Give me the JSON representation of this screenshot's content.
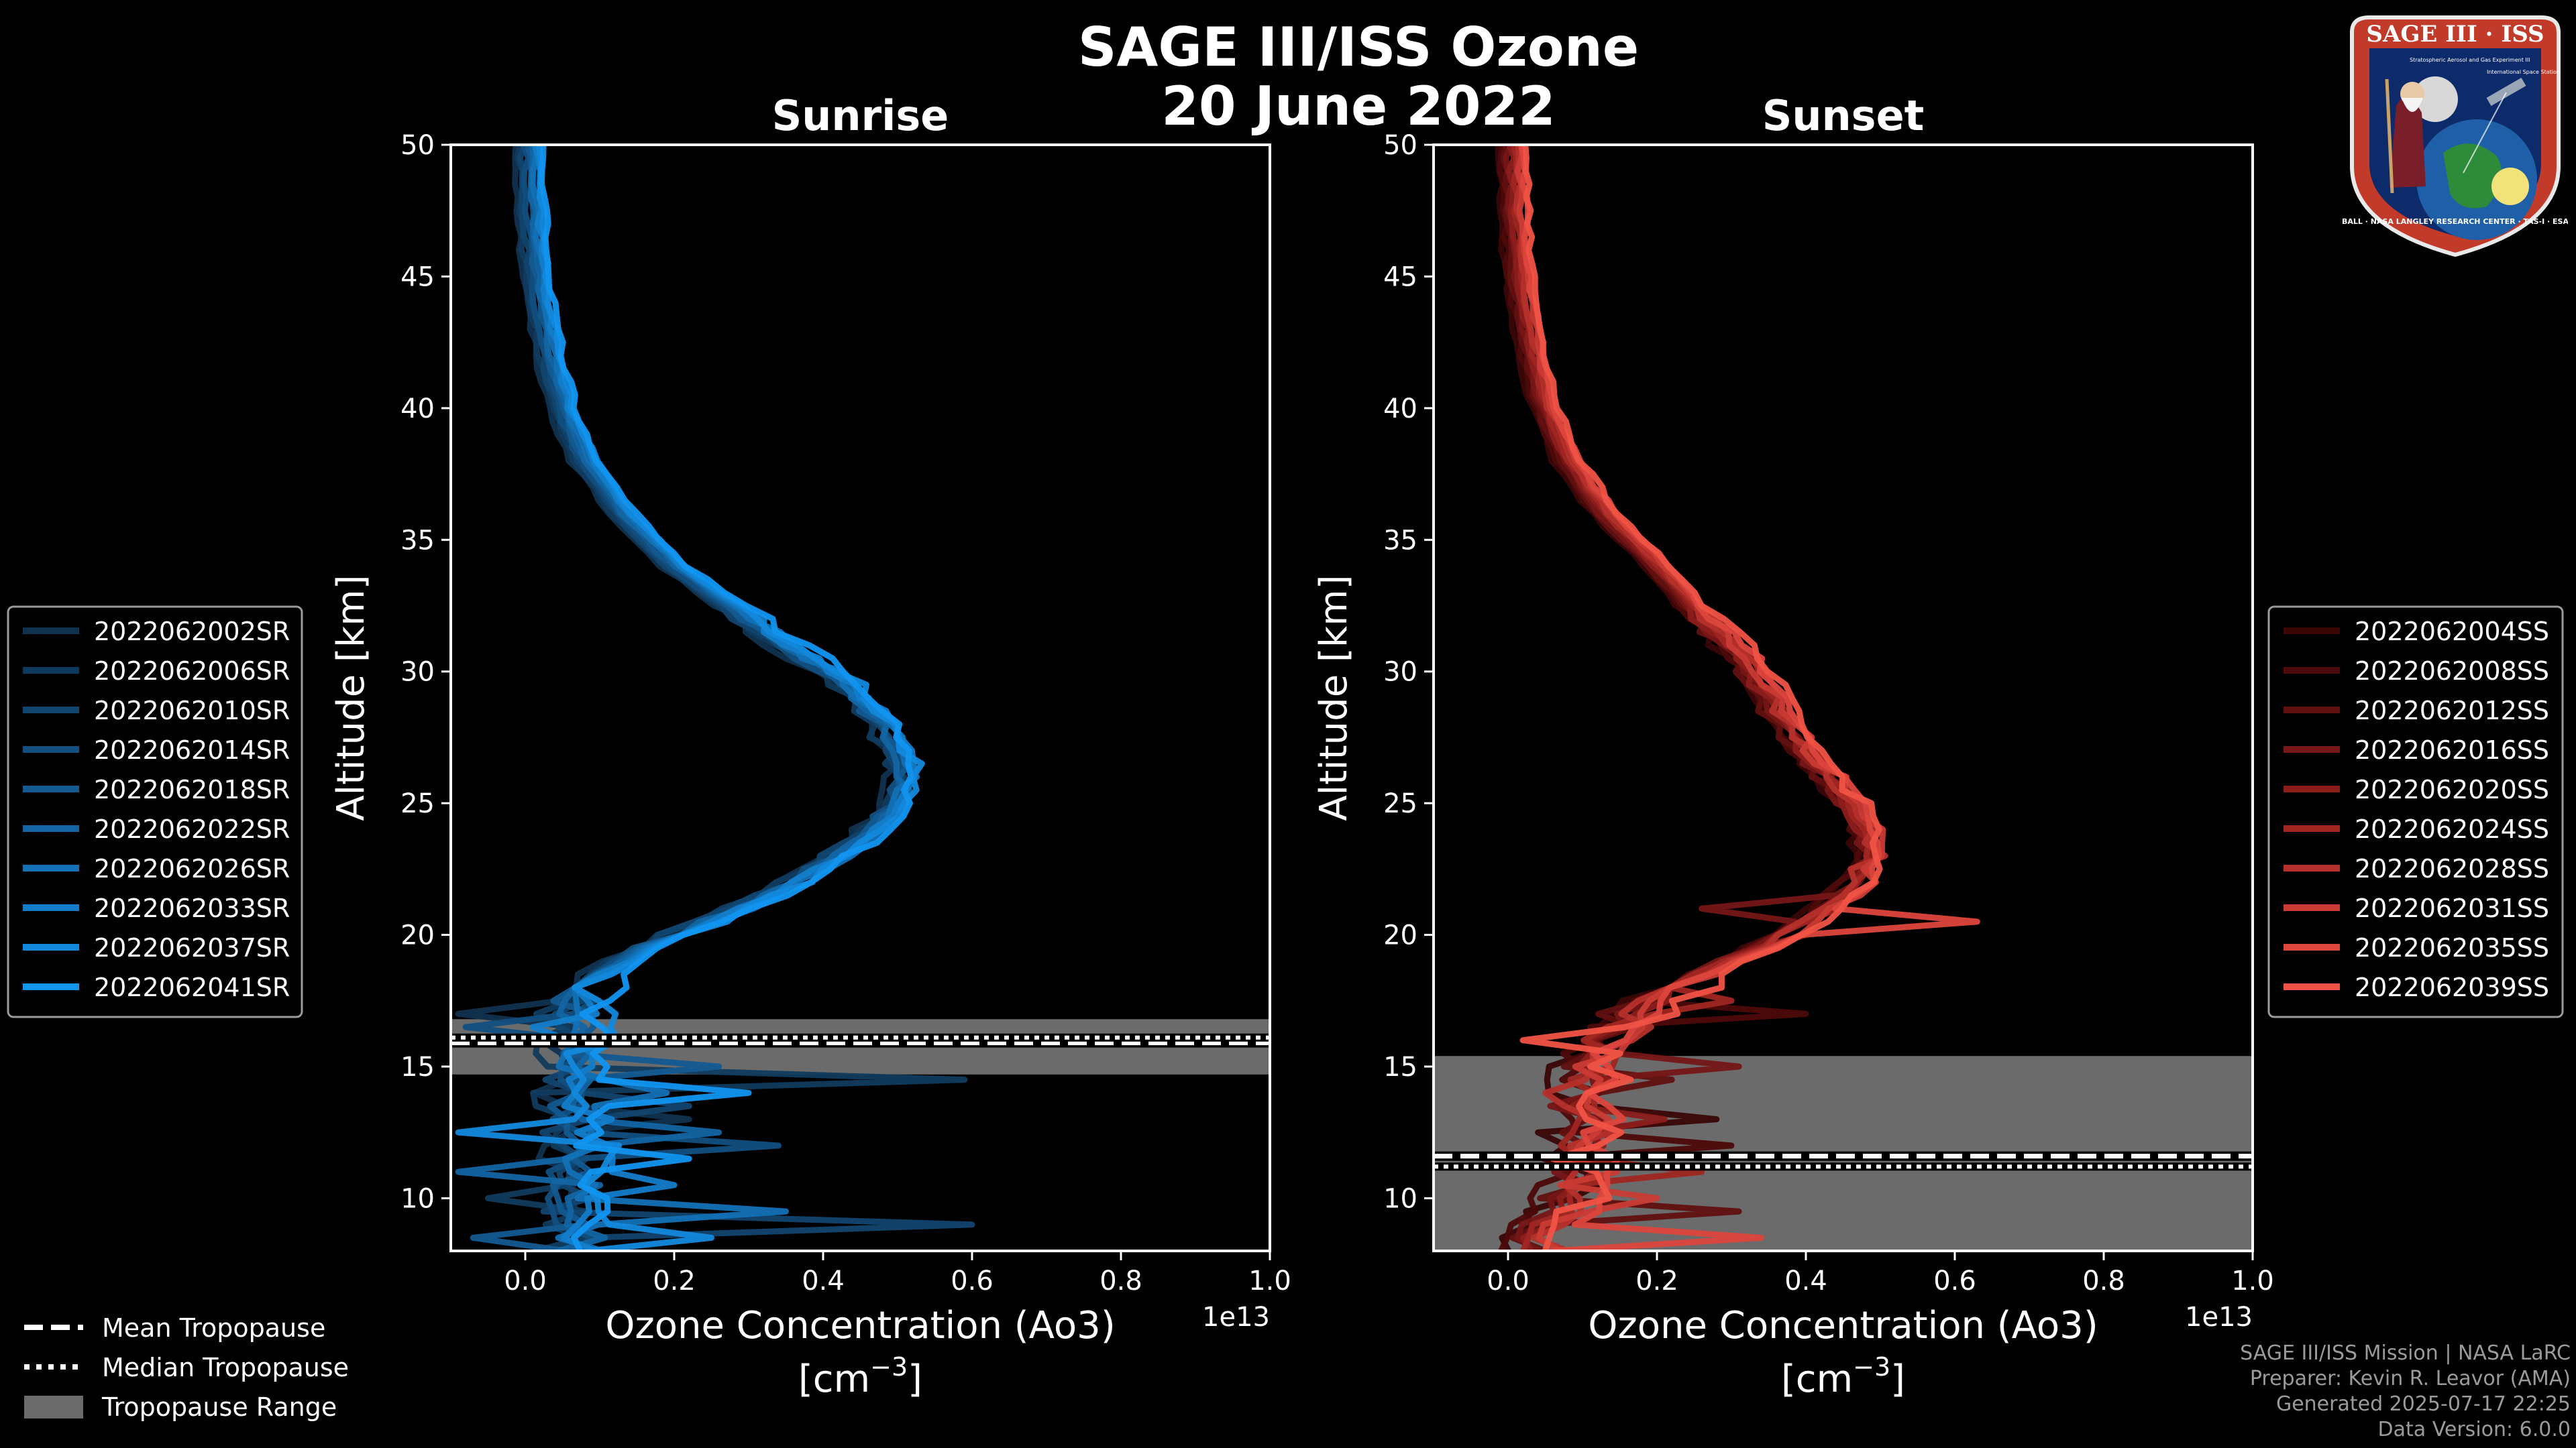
{
  "title_line1": "SAGE III/ISS Ozone",
  "title_line2": "20 June 2022",
  "logo": {
    "name": "SAGE III · ISS",
    "ring_text": "BALL · NASA LANGLEY RESEARCH CENTER · TAS-I · ESA",
    "subtitle": "Stratospheric Aerosol and Gas Experiment III",
    "subtitle2": "International Space Station"
  },
  "credits": [
    "SAGE III/ISS Mission | NASA LaRC",
    "Preparer: Kevin R. Leavor (AMA)",
    "Generated 2025-07-17 22:25",
    "Data Version: 6.0.0"
  ],
  "colors": {
    "sunrise": [
      "#10324f",
      "#113b5e",
      "#12456e",
      "#124f7f",
      "#135a91",
      "#1365a3",
      "#1371b6",
      "#137dca",
      "#1389dd",
      "#1195f0"
    ],
    "sunset": [
      "#3a0606",
      "#4d0a0a",
      "#611010",
      "#761616",
      "#8b1d1b",
      "#a02622",
      "#b5302b",
      "#c93b34",
      "#dd463d",
      "#f05345"
    ],
    "tropopause_band": "#6b6b6b"
  },
  "tropopause_legend": {
    "mean": "Mean Tropopause",
    "median": "Median Tropopause",
    "range": "Tropopause Range"
  },
  "chart_data": [
    {
      "type": "line",
      "title": "Sunrise",
      "xlabel": "Ozone Concentration (Ao3)",
      "xunit": "[cm$^{-3}$]",
      "xunit_base": "[cm",
      "xunit_exp": "−3",
      "xunit_end": "]",
      "ylabel": "Altitude [km]",
      "offset_text": "1e13",
      "xlim": [
        -0.1,
        1.0
      ],
      "ylim": [
        8,
        50
      ],
      "xticks": [
        0.0,
        0.2,
        0.4,
        0.6,
        0.8,
        1.0
      ],
      "xtick_labels": [
        "0.0",
        "0.2",
        "0.4",
        "0.6",
        "0.8",
        "1.0"
      ],
      "yticks": [
        10,
        15,
        20,
        25,
        30,
        35,
        40,
        45,
        50
      ],
      "ytick_labels": [
        "10",
        "15",
        "20",
        "25",
        "30",
        "35",
        "40",
        "45",
        "50"
      ],
      "legend_position": "left-outside",
      "tropopause": {
        "mean": 15.9,
        "median": 16.1,
        "range": [
          14.7,
          16.8
        ]
      },
      "base_profile": {
        "alt": [
          50,
          48,
          46,
          44,
          42,
          40,
          38,
          36,
          34,
          32,
          31,
          30,
          29,
          28,
          27,
          26,
          25,
          24,
          23,
          22,
          21,
          20,
          19,
          18.5,
          18,
          17.5,
          17,
          16.5,
          16,
          15.5,
          15,
          14.5,
          14,
          13.5,
          13,
          12.5,
          12,
          11.5,
          11,
          10.5,
          10,
          9.5,
          9,
          8.5,
          8
        ],
        "value": [
          0.006,
          0.008,
          0.012,
          0.02,
          0.033,
          0.05,
          0.08,
          0.13,
          0.2,
          0.3,
          0.35,
          0.41,
          0.45,
          0.48,
          0.5,
          0.51,
          0.5,
          0.47,
          0.42,
          0.36,
          0.29,
          0.2,
          0.13,
          0.1,
          0.08,
          0.075,
          0.07,
          0.07,
          0.07,
          0.068,
          0.067,
          0.066,
          0.065,
          0.067,
          0.068,
          0.07,
          0.07,
          0.072,
          0.075,
          0.072,
          0.07,
          0.07,
          0.07,
          0.07,
          0.07
        ]
      },
      "series": [
        {
          "name": "2022062002SR",
          "spikes": [
            [
              16.9,
              -0.09
            ],
            [
              12.9,
              0.22
            ]
          ]
        },
        {
          "name": "2022062006SR",
          "spikes": [
            [
              14.5,
              0.59
            ],
            [
              10.2,
              -0.05
            ]
          ]
        },
        {
          "name": "2022062010SR",
          "spikes": [
            [
              13.6,
              0.22
            ],
            [
              9.0,
              0.6
            ]
          ]
        },
        {
          "name": "2022062014SR",
          "spikes": [
            [
              16.5,
              -0.08
            ],
            [
              12.2,
              0.34
            ]
          ]
        },
        {
          "name": "2022062018SR",
          "spikes": [
            [
              15.2,
              0.26
            ],
            [
              8.7,
              -0.07
            ]
          ]
        },
        {
          "name": "2022062022SR",
          "spikes": [
            [
              12.6,
              0.26
            ],
            [
              11.1,
              -0.09
            ]
          ]
        },
        {
          "name": "2022062026SR",
          "spikes": [
            [
              13.9,
              0.19
            ],
            [
              9.6,
              0.35
            ]
          ]
        },
        {
          "name": "2022062033SR",
          "spikes": [
            [
              16.7,
              0.01
            ],
            [
              10.7,
              0.2
            ]
          ]
        },
        {
          "name": "2022062037SR",
          "spikes": [
            [
              12.3,
              -0.09
            ],
            [
              8.4,
              0.25
            ]
          ]
        },
        {
          "name": "2022062041SR",
          "spikes": [
            [
              14.1,
              0.3
            ],
            [
              11.5,
              0.22
            ]
          ]
        }
      ]
    },
    {
      "type": "line",
      "title": "Sunset",
      "xlabel": "Ozone Concentration (Ao3)",
      "xunit": "[cm$^{-3}$]",
      "xunit_base": "[cm",
      "xunit_exp": "−3",
      "xunit_end": "]",
      "ylabel": "Altitude [km]",
      "offset_text": "1e13",
      "xlim": [
        -0.1,
        1.0
      ],
      "ylim": [
        8,
        50
      ],
      "xticks": [
        0.0,
        0.2,
        0.4,
        0.6,
        0.8,
        1.0
      ],
      "xtick_labels": [
        "0.0",
        "0.2",
        "0.4",
        "0.6",
        "0.8",
        "1.0"
      ],
      "yticks": [
        10,
        15,
        20,
        25,
        30,
        35,
        40,
        45,
        50
      ],
      "ytick_labels": [
        "10",
        "15",
        "20",
        "25",
        "30",
        "35",
        "40",
        "45",
        "50"
      ],
      "legend_position": "right-outside",
      "tropopause": {
        "mean": 11.6,
        "median": 11.2,
        "range": [
          8,
          15.4
        ]
      },
      "base_profile": {
        "alt": [
          50,
          48,
          46,
          44,
          42,
          40,
          38,
          36,
          34,
          32,
          31,
          30,
          29,
          28,
          27,
          26,
          25,
          24,
          23,
          22,
          21,
          20,
          19,
          18.5,
          18,
          17.5,
          17,
          16.5,
          16,
          15.5,
          15,
          14.5,
          14,
          13.5,
          13,
          12.5,
          12,
          11.5,
          11,
          10.5,
          10,
          9.5,
          9,
          8.5,
          8
        ],
        "value": [
          0.006,
          0.008,
          0.012,
          0.02,
          0.033,
          0.05,
          0.08,
          0.13,
          0.2,
          0.26,
          0.3,
          0.33,
          0.35,
          0.37,
          0.4,
          0.43,
          0.46,
          0.48,
          0.49,
          0.47,
          0.43,
          0.37,
          0.3,
          0.26,
          0.23,
          0.2,
          0.17,
          0.15,
          0.13,
          0.12,
          0.11,
          0.11,
          0.11,
          0.1,
          0.1,
          0.1,
          0.1,
          0.1,
          0.1,
          0.09,
          0.08,
          0.07,
          0.06,
          0.05,
          0.04
        ]
      },
      "series": [
        {
          "name": "2022062004SS",
          "spikes": [
            [
              13.2,
              0.28
            ],
            [
              10.4,
              0.12
            ]
          ]
        },
        {
          "name": "2022062008SS",
          "spikes": [
            [
              16.8,
              0.4
            ],
            [
              12.1,
              0.3
            ]
          ]
        },
        {
          "name": "2022062012SS",
          "spikes": [
            [
              14.5,
              0.22
            ],
            [
              9.3,
              0.31
            ]
          ]
        },
        {
          "name": "2022062016SS",
          "spikes": [
            [
              21.1,
              0.26
            ],
            [
              15.2,
              0.31
            ]
          ]
        },
        {
          "name": "2022062020SS",
          "spikes": [
            [
              19.9,
              0.4
            ],
            [
              12.8,
              0.21
            ]
          ]
        },
        {
          "name": "2022062024SS",
          "spikes": [
            [
              17.5,
              0.3
            ],
            [
              10.9,
              0.26
            ]
          ]
        },
        {
          "name": "2022062028SS",
          "spikes": [
            [
              22.3,
              0.46
            ],
            [
              14.1,
              0.05
            ]
          ]
        },
        {
          "name": "2022062031SS",
          "spikes": [
            [
              18.6,
              0.28
            ],
            [
              9.8,
              0.2
            ]
          ]
        },
        {
          "name": "2022062035SS",
          "spikes": [
            [
              20.5,
              0.63
            ],
            [
              8.6,
              0.34
            ]
          ]
        },
        {
          "name": "2022062039SS",
          "spikes": [
            [
              16.0,
              0.02
            ],
            [
              11.5,
              0.06
            ]
          ]
        }
      ]
    }
  ]
}
